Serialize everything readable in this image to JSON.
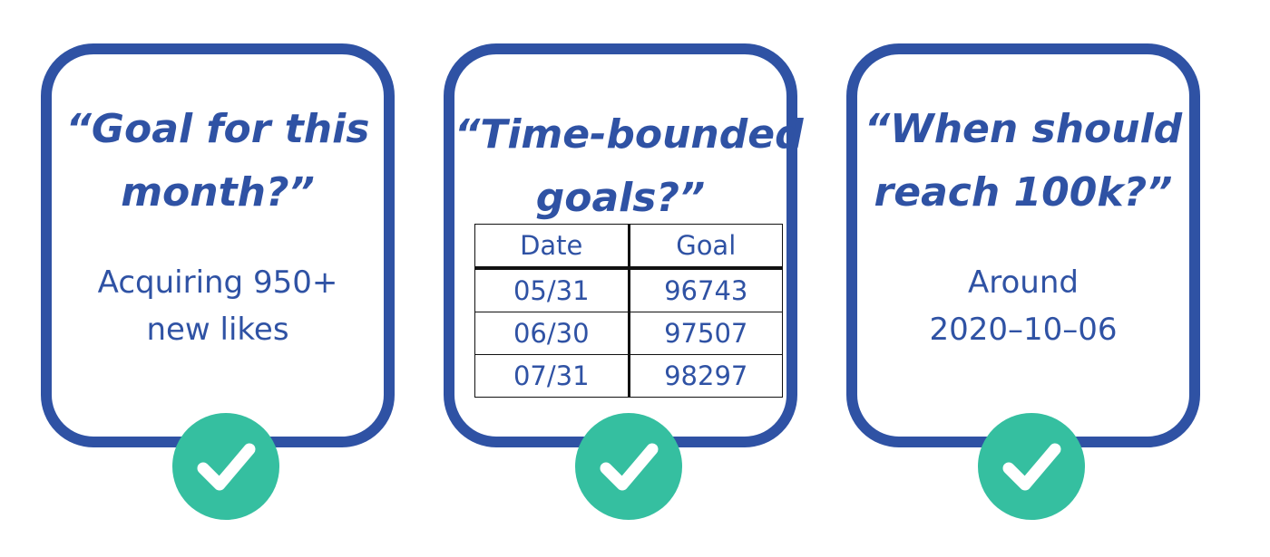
{
  "cards": [
    {
      "question_lines": [
        "“Goal for this",
        "month?”"
      ],
      "answer_lines": [
        "Acquiring 950+",
        "new likes"
      ],
      "status_icon": "check-icon"
    },
    {
      "question_lines": [
        "“Time-bounded",
        "goals?”"
      ],
      "table": {
        "headers": [
          "Date",
          "Goal"
        ],
        "rows": [
          [
            "05/31",
            "96743"
          ],
          [
            "06/30",
            "97507"
          ],
          [
            "07/31",
            "98297"
          ]
        ]
      },
      "status_icon": "check-icon"
    },
    {
      "question_lines": [
        "“When should",
        "reach 100k?”"
      ],
      "answer_lines": [
        "Around",
        "2020–10–06"
      ],
      "status_icon": "check-icon"
    }
  ],
  "colors": {
    "card_border": "#2f52a4",
    "text": "#2f52a4",
    "check_background": "#35bfa0",
    "check_mark": "#ffffff"
  }
}
